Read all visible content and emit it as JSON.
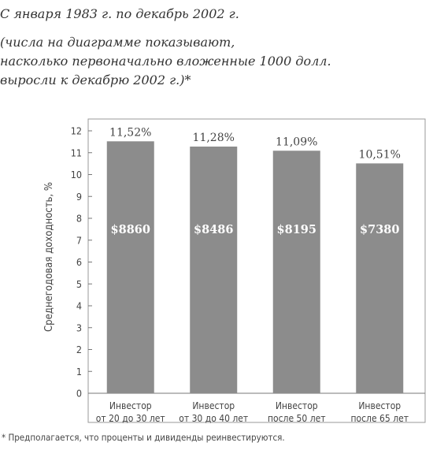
{
  "heading": {
    "line1": "С января 1983 г. по декабрь 2002 г.",
    "line2": "(числа на диаграмме показывают,",
    "line3": "насколько первоначально вложенные 1000 долл.",
    "line4": "выросли к декабрю 2002 г.)*"
  },
  "chart_data": {
    "type": "bar",
    "categories": [
      [
        "Инвестор",
        "от 20 до 30 лет"
      ],
      [
        "Инвестор",
        "от 30 до 40 лет"
      ],
      [
        "Инвестор",
        "после 50 лет"
      ],
      [
        "Инвестор",
        "после 65 лет"
      ]
    ],
    "values": [
      11.52,
      11.28,
      11.09,
      10.51
    ],
    "value_labels": [
      "11,52%",
      "11,28%",
      "11,09%",
      "10,51%"
    ],
    "inner_labels": [
      "$8860",
      "$8486",
      "$8195",
      "$7380"
    ],
    "ylabel": "Среднегодовая доходность, %",
    "ylim": [
      0,
      12
    ],
    "yticks": [
      0,
      1,
      2,
      3,
      4,
      5,
      6,
      7,
      8,
      9,
      10,
      11,
      12
    ],
    "grid": false,
    "bar_color": "#8c8c8c",
    "inner_label_color": "#ffffff",
    "frame_color": "#999999"
  },
  "footnote": "* Предполагается, что проценты и дивиденды реинвестируются."
}
